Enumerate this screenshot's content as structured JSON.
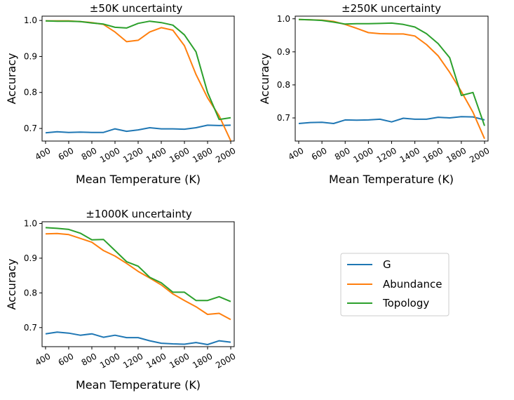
{
  "colors": {
    "G": "#1f77b4",
    "Abundance": "#ff7f0e",
    "Topology": "#2ca02c"
  },
  "legend": {
    "placement": "center",
    "entries": [
      {
        "name": "G",
        "color": "#1f77b4"
      },
      {
        "name": "Abundance",
        "color": "#ff7f0e"
      },
      {
        "name": "Topology",
        "color": "#2ca02c"
      }
    ]
  },
  "chart_data": [
    {
      "type": "line",
      "title": "±50K uncertainty",
      "xlabel": "Mean Temperature (K)",
      "ylabel": "Accuracy",
      "xlim": [
        370,
        2030
      ],
      "ylim": [
        0.665,
        1.012
      ],
      "xticks": [
        400,
        600,
        800,
        1000,
        1200,
        1400,
        1600,
        1800,
        2000
      ],
      "yticks": [
        0.7,
        0.8,
        0.9,
        1.0
      ],
      "grid": false,
      "x": [
        400,
        500,
        600,
        700,
        800,
        900,
        1000,
        1100,
        1200,
        1300,
        1400,
        1500,
        1600,
        1700,
        1800,
        1900,
        2000
      ],
      "series": [
        {
          "name": "G",
          "values": [
            0.688,
            0.691,
            0.689,
            0.69,
            0.689,
            0.689,
            0.699,
            0.692,
            0.696,
            0.702,
            0.699,
            0.699,
            0.698,
            0.702,
            0.709,
            0.708,
            0.709
          ]
        },
        {
          "name": "Abundance",
          "values": [
            0.999,
            0.999,
            0.999,
            0.997,
            0.994,
            0.989,
            0.968,
            0.941,
            0.945,
            0.968,
            0.98,
            0.973,
            0.93,
            0.85,
            0.785,
            0.735,
            0.666
          ]
        },
        {
          "name": "Topology",
          "values": [
            0.999,
            0.998,
            0.998,
            0.997,
            0.993,
            0.99,
            0.981,
            0.979,
            0.992,
            0.998,
            0.994,
            0.987,
            0.96,
            0.913,
            0.8,
            0.725,
            0.73
          ]
        }
      ]
    },
    {
      "type": "line",
      "title": "±250K uncertainty",
      "xlabel": "Mean Temperature (K)",
      "ylabel": "Accuracy",
      "xlim": [
        370,
        2030
      ],
      "ylim": [
        0.63,
        1.008
      ],
      "xticks": [
        400,
        600,
        800,
        1000,
        1200,
        1400,
        1600,
        1800,
        2000
      ],
      "yticks": [
        0.7,
        0.8,
        0.9,
        1.0
      ],
      "grid": false,
      "x": [
        400,
        500,
        600,
        700,
        800,
        900,
        1000,
        1100,
        1200,
        1300,
        1400,
        1500,
        1600,
        1700,
        1800,
        1900,
        2000
      ],
      "series": [
        {
          "name": "G",
          "values": [
            0.683,
            0.686,
            0.687,
            0.683,
            0.694,
            0.693,
            0.694,
            0.696,
            0.688,
            0.699,
            0.696,
            0.696,
            0.702,
            0.7,
            0.704,
            0.703,
            0.694
          ]
        },
        {
          "name": "Abundance",
          "values": [
            0.998,
            0.997,
            0.996,
            0.992,
            0.983,
            0.971,
            0.958,
            0.955,
            0.954,
            0.954,
            0.948,
            0.922,
            0.888,
            0.838,
            0.78,
            0.717,
            0.637
          ]
        },
        {
          "name": "Topology",
          "values": [
            0.998,
            0.997,
            0.995,
            0.99,
            0.984,
            0.985,
            0.985,
            0.986,
            0.987,
            0.983,
            0.975,
            0.955,
            0.925,
            0.882,
            0.768,
            0.777,
            0.676
          ]
        }
      ]
    },
    {
      "type": "line",
      "title": "±1000K uncertainty",
      "xlabel": "Mean Temperature (K)",
      "ylabel": "Accuracy",
      "xlim": [
        370,
        2030
      ],
      "ylim": [
        0.645,
        1.005
      ],
      "xticks": [
        400,
        600,
        800,
        1000,
        1200,
        1400,
        1600,
        1800,
        2000
      ],
      "yticks": [
        0.7,
        0.8,
        0.9,
        1.0
      ],
      "grid": false,
      "x": [
        400,
        500,
        600,
        700,
        800,
        900,
        1000,
        1100,
        1200,
        1300,
        1400,
        1500,
        1600,
        1700,
        1800,
        1900,
        2000
      ],
      "series": [
        {
          "name": "G",
          "values": [
            0.682,
            0.687,
            0.684,
            0.678,
            0.682,
            0.672,
            0.678,
            0.671,
            0.671,
            0.662,
            0.655,
            0.653,
            0.652,
            0.657,
            0.651,
            0.662,
            0.658
          ]
        },
        {
          "name": "Abundance",
          "values": [
            0.97,
            0.971,
            0.968,
            0.957,
            0.946,
            0.922,
            0.906,
            0.885,
            0.862,
            0.843,
            0.823,
            0.797,
            0.778,
            0.76,
            0.738,
            0.741,
            0.723
          ]
        },
        {
          "name": "Topology",
          "values": [
            0.988,
            0.986,
            0.983,
            0.972,
            0.953,
            0.954,
            0.922,
            0.89,
            0.877,
            0.845,
            0.829,
            0.802,
            0.802,
            0.778,
            0.778,
            0.789,
            0.775
          ]
        }
      ]
    }
  ]
}
